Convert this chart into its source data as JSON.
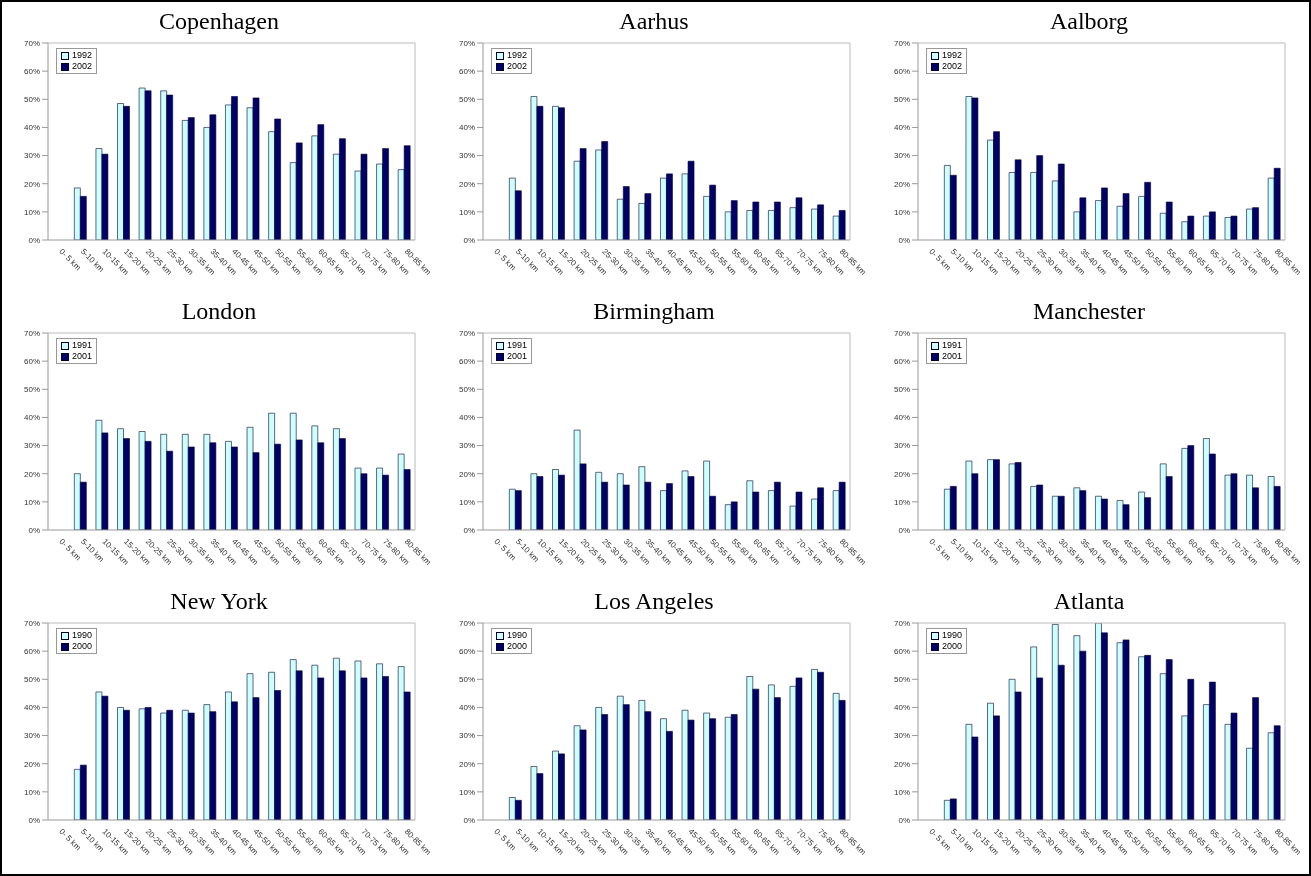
{
  "chart_data": [
    {
      "type": "bar",
      "title": "Copenhagen",
      "categories": [
        "0- 5 km",
        "5-10 km",
        "10-15 km",
        "15-20 km",
        "20-25 km",
        "25-30 km",
        "30-35 km",
        "35-40 km",
        "40-45 km",
        "45-50 km",
        "50-55 km",
        "55-60 km",
        "60-65 km",
        "65-70 km",
        "70-75 km",
        "75-80 km",
        "80-85 km"
      ],
      "ylim": [
        0,
        70
      ],
      "yticks": [
        {
          "value": 0,
          "label": "0%"
        },
        {
          "value": 10,
          "label": "10%"
        },
        {
          "value": 20,
          "label": "20%"
        },
        {
          "value": 30,
          "label": "30%"
        },
        {
          "value": 40,
          "label": "40%"
        },
        {
          "value": 50,
          "label": "50%"
        },
        {
          "value": 60,
          "label": "60%"
        },
        {
          "value": 70,
          "label": "70%"
        }
      ],
      "legend": "top left",
      "series": [
        {
          "name": "1992",
          "color": "#ccffff",
          "values": [
            null,
            18.5,
            32.5,
            48.5,
            54,
            53,
            42.5,
            40,
            48,
            47,
            38.5,
            27.5,
            37,
            30.5,
            24.5,
            27,
            25
          ]
        },
        {
          "name": "2002",
          "color": "#000066",
          "values": [
            null,
            15.5,
            30.5,
            47.5,
            53,
            51.5,
            43.5,
            44.5,
            51,
            50.5,
            43,
            34.5,
            41,
            36,
            30.5,
            32.5,
            33.5
          ]
        }
      ]
    },
    {
      "type": "bar",
      "title": "Aarhus",
      "categories": [
        "0- 5 km",
        "5-10 km",
        "10-15 km",
        "15-20 km",
        "20-25 km",
        "25-30 km",
        "30-35 km",
        "35-40 km",
        "40-45 km",
        "45-50 km",
        "50-55 km",
        "55-60 km",
        "60-65 km",
        "65-70 km",
        "70-75 km",
        "75-80 km",
        "80-85 km"
      ],
      "ylim": [
        0,
        70
      ],
      "yticks": [
        {
          "value": 0,
          "label": "0%"
        },
        {
          "value": 10,
          "label": "10%"
        },
        {
          "value": 20,
          "label": "20%"
        },
        {
          "value": 30,
          "label": "30%"
        },
        {
          "value": 40,
          "label": "40%"
        },
        {
          "value": 50,
          "label": "50%"
        },
        {
          "value": 60,
          "label": "60%"
        },
        {
          "value": 70,
          "label": "70%"
        }
      ],
      "legend": "top left",
      "series": [
        {
          "name": "1992",
          "color": "#ccffff",
          "values": [
            null,
            22,
            51,
            47.5,
            28,
            32,
            14.5,
            13,
            22,
            23.5,
            15.5,
            10,
            10.5,
            10.5,
            11.5,
            11,
            8.5
          ]
        },
        {
          "name": "2002",
          "color": "#000066",
          "values": [
            null,
            17.5,
            47.5,
            47,
            32.5,
            35,
            19,
            16.5,
            23.5,
            28,
            19.5,
            14,
            13.5,
            13.5,
            15,
            12.5,
            10.5
          ]
        }
      ]
    },
    {
      "type": "bar",
      "title": "Aalborg",
      "categories": [
        "0- 5 km",
        "5-10 km",
        "10-15 km",
        "15-20 km",
        "20-25 km",
        "25-30 km",
        "30-35 km",
        "35-40 km",
        "40-45 km",
        "45-50 km",
        "50-55 km",
        "55-60 km",
        "60-65 km",
        "65-70 km",
        "70-75 km",
        "75-80 km",
        "80-85 km"
      ],
      "ylim": [
        0,
        70
      ],
      "yticks": [
        {
          "value": 0,
          "label": "0%"
        },
        {
          "value": 10,
          "label": "10%"
        },
        {
          "value": 20,
          "label": "20%"
        },
        {
          "value": 30,
          "label": "30%"
        },
        {
          "value": 40,
          "label": "40%"
        },
        {
          "value": 50,
          "label": "50%"
        },
        {
          "value": 60,
          "label": "60%"
        },
        {
          "value": 70,
          "label": "70%"
        }
      ],
      "legend": "top left",
      "series": [
        {
          "name": "1992",
          "color": "#ccffff",
          "values": [
            null,
            26.5,
            51,
            35.5,
            24,
            24,
            21,
            10,
            14,
            12,
            15.5,
            9.5,
            6.5,
            8.5,
            8,
            11,
            22
          ]
        },
        {
          "name": "2002",
          "color": "#000066",
          "values": [
            null,
            23,
            50.5,
            38.5,
            28.5,
            30,
            27,
            15,
            18.5,
            16.5,
            20.5,
            13.5,
            8.5,
            10,
            8.5,
            11.5,
            25.5
          ]
        }
      ]
    },
    {
      "type": "bar",
      "title": "London",
      "categories": [
        "0- 5 km",
        "5-10 km",
        "10-15 km",
        "15-20 km",
        "20-25 km",
        "25-30 km",
        "30-35 km",
        "35-40 km",
        "40-45 km",
        "45-50 km",
        "50-55 km",
        "55-60 km",
        "60-65 km",
        "65-70 km",
        "70-75 km",
        "75-80 km",
        "80-85 km"
      ],
      "ylim": [
        0,
        70
      ],
      "yticks": [
        {
          "value": 0,
          "label": "0%"
        },
        {
          "value": 10,
          "label": "10%"
        },
        {
          "value": 20,
          "label": "20%"
        },
        {
          "value": 30,
          "label": "30%"
        },
        {
          "value": 40,
          "label": "40%"
        },
        {
          "value": 50,
          "label": "50%"
        },
        {
          "value": 60,
          "label": "60%"
        },
        {
          "value": 70,
          "label": "70%"
        }
      ],
      "legend": "top left",
      "series": [
        {
          "name": "1991",
          "color": "#ccffff",
          "values": [
            null,
            20,
            39,
            36,
            35,
            34,
            34,
            34,
            31.5,
            36.5,
            41.5,
            41.5,
            37,
            36,
            22,
            22,
            27
          ]
        },
        {
          "name": "2001",
          "color": "#000066",
          "values": [
            null,
            17,
            34.5,
            32.5,
            31.5,
            28,
            29.5,
            31,
            29.5,
            27.5,
            30.5,
            32,
            31,
            32.5,
            20,
            19.5,
            21.5
          ]
        }
      ]
    },
    {
      "type": "bar",
      "title": "Birmingham",
      "categories": [
        "0- 5 km",
        "5-10 km",
        "10-15 km",
        "15-20 km",
        "20-25 km",
        "25-30 km",
        "30-35 km",
        "35-40 km",
        "40-45 km",
        "45-50 km",
        "50-55 km",
        "55-60 km",
        "60-65 km",
        "65-70 km",
        "70-75 km",
        "75-80 km",
        "80-85 km"
      ],
      "ylim": [
        0,
        70
      ],
      "yticks": [
        {
          "value": 0,
          "label": "0%"
        },
        {
          "value": 10,
          "label": "10%"
        },
        {
          "value": 20,
          "label": "20%"
        },
        {
          "value": 30,
          "label": "30%"
        },
        {
          "value": 40,
          "label": "40%"
        },
        {
          "value": 50,
          "label": "50%"
        },
        {
          "value": 60,
          "label": "60%"
        },
        {
          "value": 70,
          "label": "70%"
        }
      ],
      "legend": "top left",
      "series": [
        {
          "name": "1991",
          "color": "#ccffff",
          "values": [
            null,
            14.5,
            20,
            21.5,
            35.5,
            20.5,
            20,
            22.5,
            14,
            21,
            24.5,
            9,
            17.5,
            14,
            8.5,
            11,
            14
          ]
        },
        {
          "name": "2001",
          "color": "#000066",
          "values": [
            null,
            14,
            19,
            19.5,
            23.5,
            17,
            16,
            17,
            16.5,
            19,
            12,
            10,
            13.5,
            17,
            13.5,
            15,
            17
          ]
        }
      ]
    },
    {
      "type": "bar",
      "title": "Manchester",
      "categories": [
        "0- 5 km",
        "5-10 km",
        "10-15 km",
        "15-20 km",
        "20-25 km",
        "25-30 km",
        "30-35 km",
        "35-40 km",
        "40-45 km",
        "45-50 km",
        "50-55 km",
        "55-60 km",
        "60-65 km",
        "65-70 km",
        "70-75 km",
        "75-80 km",
        "80-85 km"
      ],
      "ylim": [
        0,
        70
      ],
      "yticks": [
        {
          "value": 0,
          "label": "0%"
        },
        {
          "value": 10,
          "label": "10%"
        },
        {
          "value": 20,
          "label": "20%"
        },
        {
          "value": 30,
          "label": "30%"
        },
        {
          "value": 40,
          "label": "40%"
        },
        {
          "value": 50,
          "label": "50%"
        },
        {
          "value": 60,
          "label": "60%"
        },
        {
          "value": 70,
          "label": "70%"
        }
      ],
      "legend": "top left",
      "series": [
        {
          "name": "1991",
          "color": "#ccffff",
          "values": [
            null,
            14.5,
            24.5,
            25,
            23.5,
            15.5,
            12,
            15,
            12,
            10.5,
            13.5,
            23.5,
            29,
            32.5,
            19.5,
            19.5,
            19
          ]
        },
        {
          "name": "2001",
          "color": "#000066",
          "values": [
            null,
            15.5,
            20,
            25,
            24,
            16,
            12,
            14,
            11,
            9,
            11.5,
            19,
            30,
            27,
            20,
            15,
            15.5
          ]
        }
      ]
    },
    {
      "type": "bar",
      "title": "New York",
      "categories": [
        "0- 5 km",
        "5-10 km",
        "10-15 km",
        "15-20 km",
        "20-25 km",
        "25-30 km",
        "30-35 km",
        "35-40 km",
        "40-45 km",
        "45-50 km",
        "50-55 km",
        "55-60 km",
        "60-65 km",
        "65-70 km",
        "70-75 km",
        "75-80 km",
        "80-85 km"
      ],
      "ylim": [
        0,
        70
      ],
      "yticks": [
        {
          "value": 0,
          "label": "0%"
        },
        {
          "value": 10,
          "label": "10%"
        },
        {
          "value": 20,
          "label": "20%"
        },
        {
          "value": 30,
          "label": "30%"
        },
        {
          "value": 40,
          "label": "40%"
        },
        {
          "value": 50,
          "label": "50%"
        },
        {
          "value": 60,
          "label": "60%"
        },
        {
          "value": 70,
          "label": "70%"
        }
      ],
      "legend": "top left",
      "series": [
        {
          "name": "1990",
          "color": "#ccffff",
          "values": [
            null,
            18,
            45.5,
            40,
            39.5,
            38,
            39,
            41,
            45.5,
            52,
            52.5,
            57,
            55,
            57.5,
            56.5,
            55.5,
            54.5
          ]
        },
        {
          "name": "2000",
          "color": "#000066",
          "values": [
            null,
            19.5,
            44,
            39,
            40,
            39,
            38,
            38.5,
            42,
            43.5,
            46,
            53,
            50.5,
            53,
            50.5,
            51,
            45.5
          ]
        }
      ]
    },
    {
      "type": "bar",
      "title": "Los Angeles",
      "categories": [
        "0- 5 km",
        "5-10 km",
        "10-15 km",
        "15-20 km",
        "20-25 km",
        "25-30 km",
        "30-35 km",
        "35-40 km",
        "40-45 km",
        "45-50 km",
        "50-55 km",
        "55-60 km",
        "60-65 km",
        "65-70 km",
        "70-75 km",
        "75-80 km",
        "80-85 km"
      ],
      "ylim": [
        0,
        70
      ],
      "yticks": [
        {
          "value": 0,
          "label": "0%"
        },
        {
          "value": 10,
          "label": "10%"
        },
        {
          "value": 20,
          "label": "20%"
        },
        {
          "value": 30,
          "label": "30%"
        },
        {
          "value": 40,
          "label": "40%"
        },
        {
          "value": 50,
          "label": "50%"
        },
        {
          "value": 60,
          "label": "60%"
        },
        {
          "value": 70,
          "label": "70%"
        }
      ],
      "legend": "top left",
      "series": [
        {
          "name": "1990",
          "color": "#ccffff",
          "values": [
            null,
            8,
            19,
            24.5,
            33.5,
            40,
            44,
            42.5,
            36,
            39,
            38,
            36.5,
            51,
            48,
            47.5,
            53.5,
            45
          ]
        },
        {
          "name": "2000",
          "color": "#000066",
          "values": [
            null,
            7,
            16.5,
            23.5,
            32,
            37.5,
            41,
            38.5,
            31.5,
            35.5,
            36,
            37.5,
            46.5,
            43.5,
            50.5,
            52.5,
            42.5
          ]
        }
      ]
    },
    {
      "type": "bar",
      "title": "Atlanta",
      "categories": [
        "0- 5 km",
        "5-10 km",
        "10-15 km",
        "15-20 km",
        "20-25 km",
        "25-30 km",
        "30-35 km",
        "35-40 km",
        "40-45 km",
        "45-50 km",
        "50-55 km",
        "55-60 km",
        "60-65 km",
        "65-70 km",
        "70-75 km",
        "75-80 km",
        "80-85 km"
      ],
      "ylim": [
        0,
        70
      ],
      "yticks": [
        {
          "value": 0,
          "label": "0%"
        },
        {
          "value": 10,
          "label": "10%"
        },
        {
          "value": 20,
          "label": "20%"
        },
        {
          "value": 30,
          "label": "30%"
        },
        {
          "value": 40,
          "label": "40%"
        },
        {
          "value": 50,
          "label": "50%"
        },
        {
          "value": 60,
          "label": "60%"
        },
        {
          "value": 70,
          "label": "70%"
        }
      ],
      "legend": "top left",
      "series": [
        {
          "name": "1990",
          "color": "#ccffff",
          "values": [
            null,
            7,
            34,
            41.5,
            50,
            61.5,
            69.5,
            65.5,
            70,
            63,
            58,
            52,
            37,
            41,
            34,
            25.5,
            31
          ]
        },
        {
          "name": "2000",
          "color": "#000066",
          "values": [
            null,
            7.5,
            29.5,
            37,
            45.5,
            50.5,
            55,
            60,
            66.5,
            64,
            58.5,
            57,
            50,
            49,
            38,
            43.5,
            33.5
          ]
        }
      ]
    }
  ]
}
